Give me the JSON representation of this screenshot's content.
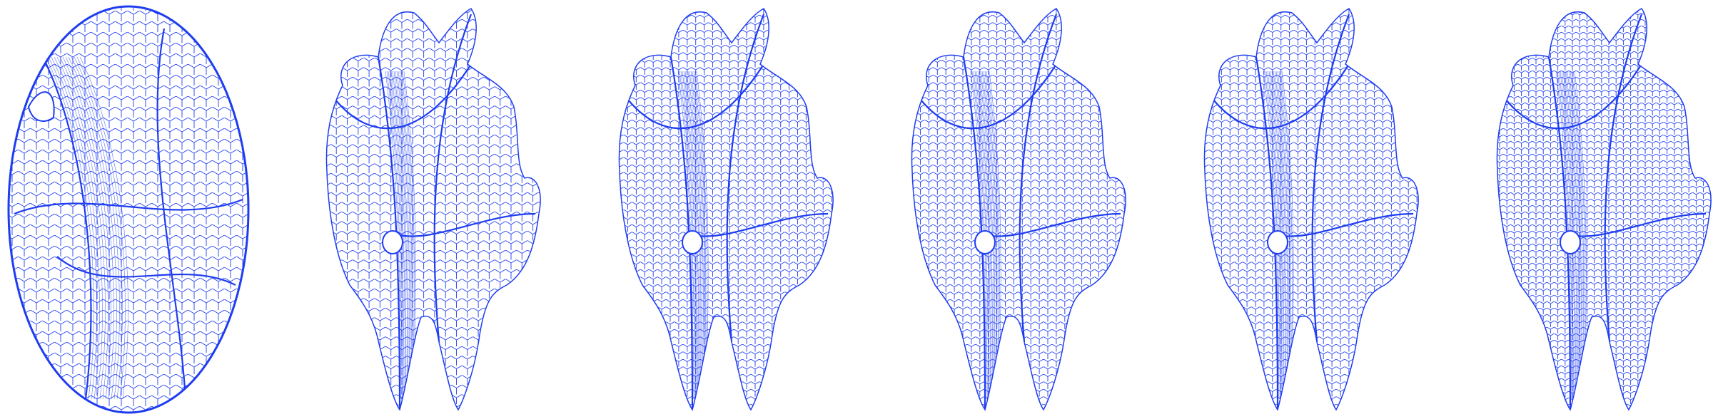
{
  "figure": {
    "mesh_color": "#1f3df0",
    "background": "#ffffff",
    "panels": [
      {
        "id": "stage-1",
        "shape": "ellipsoid-wireframe"
      },
      {
        "id": "stage-2",
        "shape": "molar-wireframe-coarse"
      },
      {
        "id": "stage-3",
        "shape": "molar-wireframe"
      },
      {
        "id": "stage-4",
        "shape": "molar-wireframe"
      },
      {
        "id": "stage-5",
        "shape": "molar-wireframe"
      },
      {
        "id": "stage-6",
        "shape": "molar-wireframe-fine"
      }
    ]
  }
}
